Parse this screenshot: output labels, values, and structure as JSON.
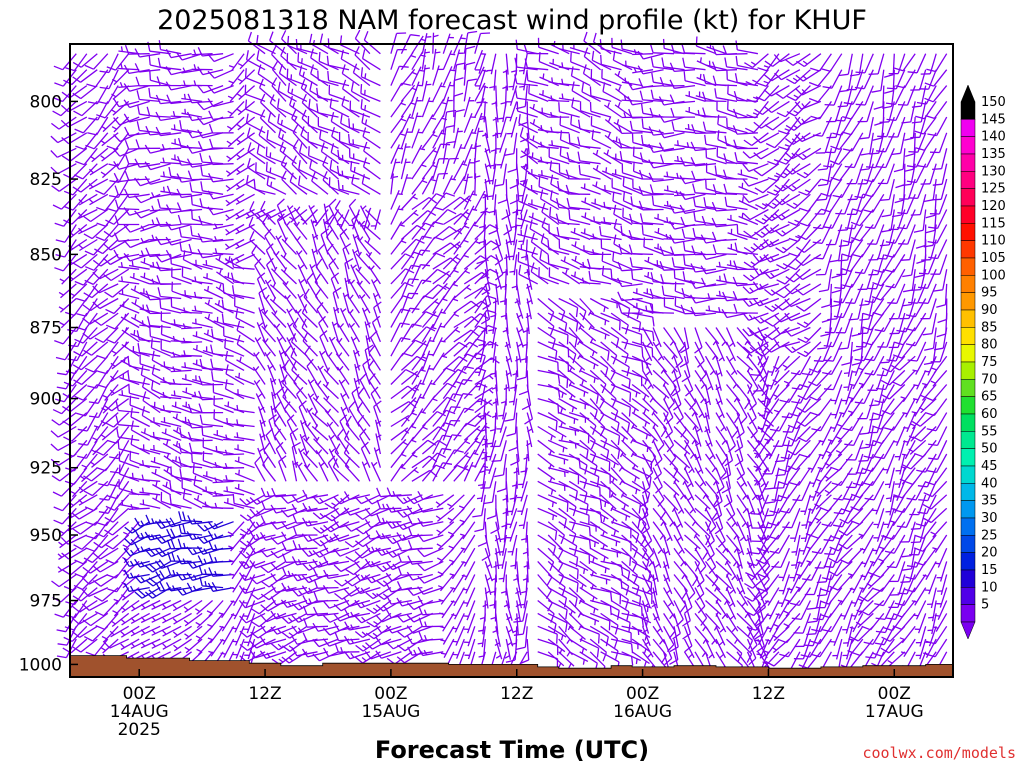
{
  "chart_data": {
    "type": "wind_barb_profile",
    "title": "2025081318 NAM forecast wind profile (kt) for KHUF",
    "xlabel": "Forecast Time (UTC)",
    "x_ticks": [
      {
        "hour": 0,
        "lines": [
          "00Z",
          "14AUG",
          "2025"
        ]
      },
      {
        "hour": 12,
        "lines": [
          "12Z"
        ]
      },
      {
        "hour": 24,
        "lines": [
          "00Z",
          "15AUG"
        ]
      },
      {
        "hour": 36,
        "lines": [
          "12Z"
        ]
      },
      {
        "hour": 48,
        "lines": [
          "00Z",
          "16AUG"
        ]
      },
      {
        "hour": 60,
        "lines": [
          "12Z"
        ]
      },
      {
        "hour": 72,
        "lines": [
          "00Z",
          "17AUG"
        ]
      }
    ],
    "xlim_hours_from_14AUG_00Z": [
      -6.6,
      77.6
    ],
    "time_step_hours": 1,
    "y_ticks": [
      800,
      825,
      850,
      875,
      900,
      925,
      950,
      975,
      1000
    ],
    "ylim_hPa": [
      782,
      1005
    ],
    "level_step_hPa": 5,
    "colorbar": {
      "unit": "kt",
      "values": [
        5,
        10,
        15,
        20,
        25,
        30,
        35,
        40,
        45,
        50,
        55,
        60,
        65,
        70,
        75,
        80,
        85,
        90,
        95,
        100,
        105,
        110,
        115,
        120,
        125,
        130,
        135,
        140,
        145,
        150
      ],
      "colors": [
        "#7a00f0",
        "#5000e8",
        "#2000d8",
        "#0020e0",
        "#0048e8",
        "#0070f0",
        "#0098f0",
        "#00b8e8",
        "#00d8d0",
        "#00f0b0",
        "#00e890",
        "#00e060",
        "#20e030",
        "#60e020",
        "#a8f000",
        "#e8f800",
        "#ffe000",
        "#ffc000",
        "#ff9800",
        "#ff8000",
        "#ff6000",
        "#ff3800",
        "#ff1000",
        "#ff0028",
        "#ff0058",
        "#ff0080",
        "#ff00a8",
        "#ff00d0",
        "#f000f0",
        "#000000"
      ]
    },
    "surface_pressure_hPa": [
      {
        "start": -6.6,
        "p": 996.5
      },
      {
        "start": -1.2,
        "p": 997.5
      },
      {
        "start": 4.8,
        "p": 998.5
      },
      {
        "start": 10.5,
        "p": 999.5
      },
      {
        "start": 13.5,
        "p": 1000.5
      },
      {
        "start": 17.5,
        "p": 999.5
      },
      {
        "start": 29.5,
        "p": 1000
      },
      {
        "start": 38,
        "p": 1001
      },
      {
        "start": 40,
        "p": 1001.5
      },
      {
        "start": 45,
        "p": 1000.5
      },
      {
        "start": 47,
        "p": 1001
      },
      {
        "start": 51,
        "p": 1000.5
      },
      {
        "start": 55,
        "p": 1001
      },
      {
        "start": 60,
        "p": 1001.5
      },
      {
        "start": 65,
        "p": 1001
      },
      {
        "start": 69,
        "p": 1000.5
      },
      {
        "start": 75,
        "p": 1000
      }
    ],
    "surface_color": "#a0522d",
    "barb_color_low": "#8000f0",
    "barb_color_mid": "#2000d8",
    "wind_regimes": [
      {
        "t0": -6.6,
        "t1": -0.4,
        "p0": 782,
        "p1": 1005,
        "dir": 225,
        "spd": 9
      },
      {
        "t0": -0.4,
        "t1": 10,
        "p0": 782,
        "p1": 850,
        "dir": 265,
        "spd": 9
      },
      {
        "t0": -0.4,
        "t1": 12,
        "p0": 855,
        "p1": 940,
        "dir": 285,
        "spd": 7
      },
      {
        "t0": 1,
        "t1": 10,
        "p0": 945,
        "p1": 970,
        "dir": 255,
        "spd": 17
      },
      {
        "t0": 12,
        "t1": 24,
        "p0": 782,
        "p1": 830,
        "dir": 300,
        "spd": 11
      },
      {
        "t0": 12,
        "t1": 24,
        "p0": 840,
        "p1": 930,
        "dir": 330,
        "spd": 7
      },
      {
        "t0": 12,
        "t1": 30,
        "p0": 935,
        "p1": 995,
        "dir": 250,
        "spd": 12
      },
      {
        "t0": 24,
        "t1": 33,
        "p0": 782,
        "p1": 830,
        "dir": 20,
        "spd": 6
      },
      {
        "t0": 24,
        "t1": 33,
        "p0": 835,
        "p1": 930,
        "dir": 40,
        "spd": 8
      },
      {
        "t0": 33,
        "t1": 38,
        "p0": 782,
        "p1": 990,
        "dir": 180,
        "spd": 6
      },
      {
        "t0": 38,
        "t1": 48,
        "p0": 782,
        "p1": 860,
        "dir": 290,
        "spd": 8
      },
      {
        "t0": 38,
        "t1": 48,
        "p0": 865,
        "p1": 995,
        "dir": 120,
        "spd": 8
      },
      {
        "t0": 48,
        "t1": 60,
        "p0": 782,
        "p1": 870,
        "dir": 275,
        "spd": 9
      },
      {
        "t0": 48,
        "t1": 60,
        "p0": 875,
        "p1": 995,
        "dir": 150,
        "spd": 7
      },
      {
        "t0": 60,
        "t1": 66,
        "p0": 782,
        "p1": 880,
        "dir": 235,
        "spd": 13
      },
      {
        "t0": 66,
        "t1": 78,
        "p0": 782,
        "p1": 880,
        "dir": 200,
        "spd": 10
      },
      {
        "t0": 60,
        "t1": 78,
        "p0": 885,
        "p1": 995,
        "dir": 210,
        "spd": 8
      }
    ]
  },
  "credit": "coolwx.com/models",
  "credit_color": "#e03030"
}
